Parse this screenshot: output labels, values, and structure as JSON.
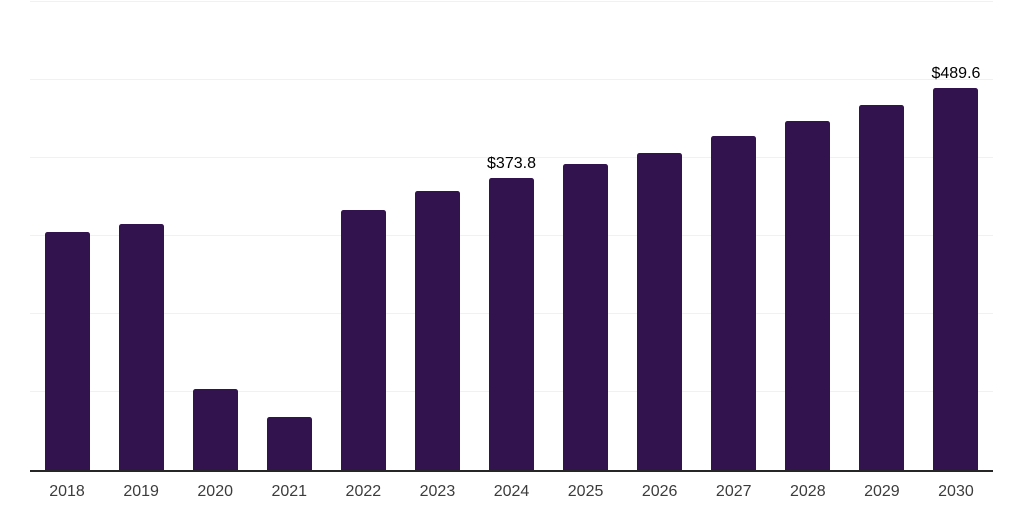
{
  "chart": {
    "background_color": "#ffffff",
    "bar_color": "#33134d",
    "axis_line_color": "#262626",
    "gridline_color": "#f1f0f2",
    "x_label_color": "#3c3c3c",
    "value_label_color": "#000000"
  },
  "chart_data": {
    "type": "bar",
    "title": "",
    "xlabel": "",
    "ylabel": "",
    "categories": [
      "2018",
      "2019",
      "2020",
      "2021",
      "2022",
      "2023",
      "2024",
      "2025",
      "2026",
      "2027",
      "2028",
      "2029",
      "2030"
    ],
    "values": [
      305,
      315,
      104,
      68,
      333,
      358,
      373.8,
      392,
      407,
      428,
      447,
      468,
      489.6
    ],
    "data_labels": {
      "2024": "$373.8",
      "2030": "$489.6"
    },
    "ylim": [
      0,
      600
    ],
    "gridline_interval": 100,
    "grid": "horizontal",
    "y_axis_tick_labels_visible": false,
    "legend": "none"
  }
}
